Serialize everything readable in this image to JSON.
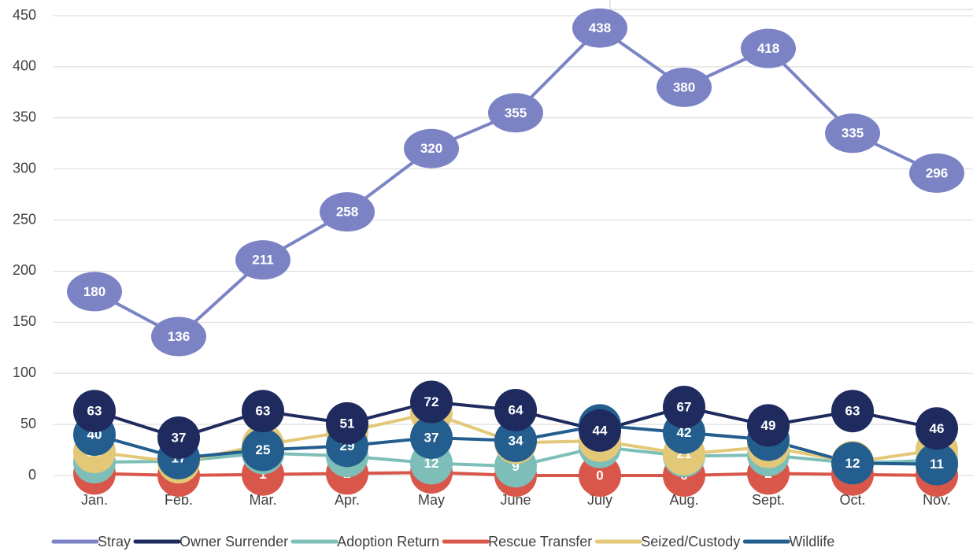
{
  "chart_data": {
    "type": "line",
    "categories": [
      "Jan.",
      "Feb.",
      "Mar.",
      "Apr.",
      "May",
      "June",
      "July",
      "Aug.",
      "Sept.",
      "Oct.",
      "Nov."
    ],
    "series": [
      {
        "name": "Stray",
        "color": "#7b83c4",
        "values": [
          180,
          136,
          211,
          258,
          320,
          355,
          438,
          380,
          418,
          335,
          296
        ]
      },
      {
        "name": "Owner Surrender",
        "color": "#1f2a5e",
        "values": [
          63,
          37,
          63,
          51,
          72,
          64,
          44,
          67,
          49,
          63,
          46
        ]
      },
      {
        "name": "Adoption Return",
        "color": "#7dbfb8",
        "values": [
          13,
          14,
          22,
          19,
          12,
          9,
          28,
          19,
          20,
          12,
          15
        ]
      },
      {
        "name": "Rescue Transfer",
        "color": "#d9574a",
        "values": [
          2,
          0,
          1,
          2,
          3,
          0,
          0,
          0,
          2,
          1,
          0
        ]
      },
      {
        "name": "Seized/Custody",
        "color": "#e3c878",
        "values": [
          23,
          13,
          30,
          43,
          61,
          32,
          34,
          21,
          28,
          13,
          25
        ]
      },
      {
        "name": "Wildlife",
        "color": "#245e8e",
        "values": [
          40,
          17,
          25,
          29,
          37,
          34,
          49,
          42,
          35,
          12,
          11
        ]
      }
    ],
    "ylim": [
      0,
      450
    ],
    "yticks": [
      0,
      50,
      100,
      150,
      200,
      250,
      300,
      350,
      400,
      450
    ],
    "grid": true,
    "legend": "bottom"
  }
}
